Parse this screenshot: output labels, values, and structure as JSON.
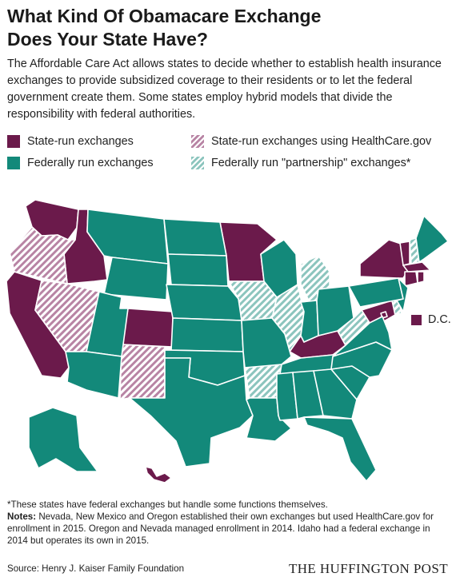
{
  "title_line1": "What Kind Of Obamacare Exchange",
  "title_line2": "Does Your State Have?",
  "subtitle": "The Affordable Care Act allows states to decide whether to establish health insurance exchanges to provide subsidized coverage to their residents or to let the federal government create them. Some states employ hybrid models that divide the responsibility with federal authorities.",
  "colors": {
    "state_run": "#6b1a4b",
    "federal": "#13897a",
    "state_run_healthcare_gov_stripe": "#b884a4",
    "partnership_stripe": "#8cc5be",
    "background": "#ffffff"
  },
  "legend": {
    "state_run": "State-run exchanges",
    "state_run_healthcare_gov": "State-run exchanges using HealthCare.gov",
    "federal": "Federally run exchanges",
    "partnership": "Federally run \"partnership\" exchanges*"
  },
  "dc_label": "D.C.",
  "map_categories": {
    "state_run": [
      "WA",
      "ID",
      "CA",
      "CO",
      "MN",
      "KY",
      "NY",
      "VT",
      "MA",
      "RI",
      "CT",
      "MD",
      "DC",
      "HI"
    ],
    "state_run_healthcare_gov": [
      "OR",
      "NV",
      "NM"
    ],
    "partnership": [
      "IL",
      "MI",
      "AR",
      "IA",
      "WV",
      "NH",
      "DE"
    ],
    "federal": [
      "MT",
      "WY",
      "UT",
      "AZ",
      "ND",
      "SD",
      "NE",
      "KS",
      "OK",
      "TX",
      "MO",
      "LA",
      "WI",
      "IN",
      "OH",
      "TN",
      "MS",
      "AL",
      "GA",
      "FL",
      "SC",
      "NC",
      "VA",
      "PA",
      "NJ",
      "ME",
      "AK"
    ]
  },
  "footnote": "*These states have federal exchanges but handle some functions themselves.",
  "notes_label": "Notes:",
  "notes_text": "Nevada, New Mexico and Oregon established their own exchanges but used HealthCare.gov for enrollment in 2015. Oregon and Nevada managed enrollment in 2014. Idaho had a federal exchange in 2014 but operates its own in 2015.",
  "source": "Source: Henry J. Kaiser Family Foundation",
  "brand": "THE HUFFINGTON POST"
}
